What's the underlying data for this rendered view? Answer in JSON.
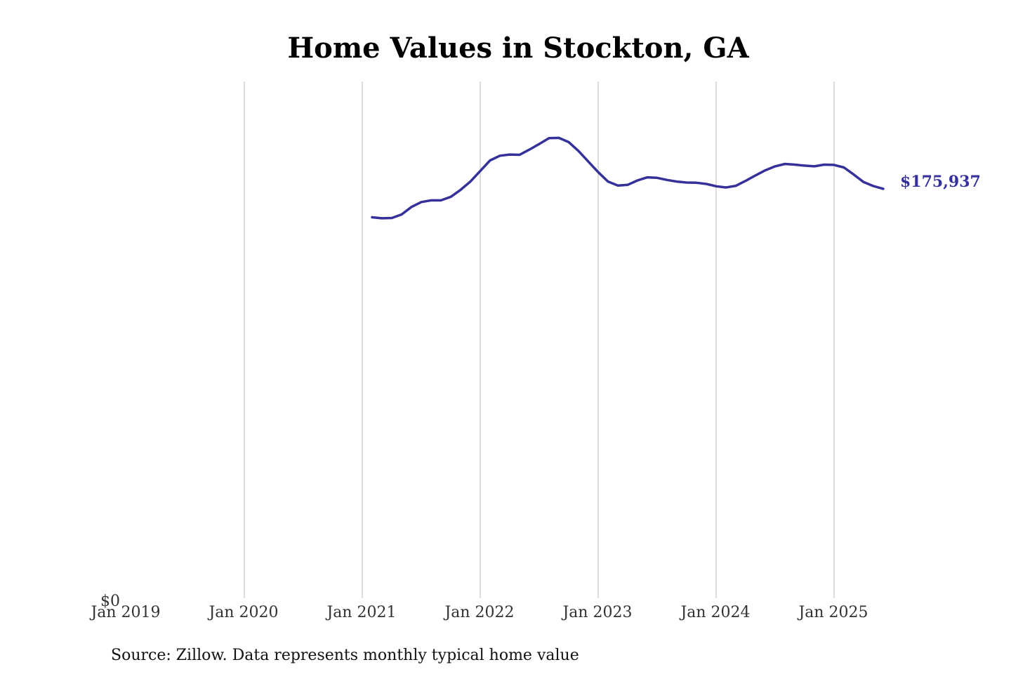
{
  "chart_data": {
    "type": "line",
    "title": "Home Values in Stockton, GA",
    "xlabel": "",
    "ylabel": "",
    "source": "Source: Zillow. Data represents monthly typical home value",
    "x_ticks": [
      {
        "label": "Jan 2019",
        "date": "2019-01"
      },
      {
        "label": "Jan 2020",
        "date": "2020-01"
      },
      {
        "label": "Jan 2021",
        "date": "2021-01"
      },
      {
        "label": "Jan 2022",
        "date": "2022-01"
      },
      {
        "label": "Jan 2023",
        "date": "2023-01"
      },
      {
        "label": "Jan 2024",
        "date": "2024-01"
      },
      {
        "label": "Jan 2025",
        "date": "2025-01"
      }
    ],
    "y_ticks": [
      {
        "label": "$0",
        "value": 0
      }
    ],
    "xlim": [
      "2019-01",
      "2025-06"
    ],
    "ylim": [
      0,
      221000
    ],
    "grid": "vertical",
    "line_color": "#35319a",
    "end_label": "$175,937",
    "series": [
      {
        "x": [
          "2021-02",
          "2021-03",
          "2021-04",
          "2021-05",
          "2021-06",
          "2021-07",
          "2021-08",
          "2021-09",
          "2021-10",
          "2021-11",
          "2021-12",
          "2022-01",
          "2022-02",
          "2022-03",
          "2022-04",
          "2022-05",
          "2022-06",
          "2022-07",
          "2022-08",
          "2022-09",
          "2022-10",
          "2022-11",
          "2022-12",
          "2023-01",
          "2023-02",
          "2023-03",
          "2023-04",
          "2023-05",
          "2023-06",
          "2023-07",
          "2023-08",
          "2023-09",
          "2023-10",
          "2023-11",
          "2023-12",
          "2024-01",
          "2024-02",
          "2024-03",
          "2024-04",
          "2024-05",
          "2024-06",
          "2024-07",
          "2024-08",
          "2024-09",
          "2024-10",
          "2024-11",
          "2024-12",
          "2025-01",
          "2025-02",
          "2025-03",
          "2025-04",
          "2025-05",
          "2025-06"
        ],
        "values": [
          163800,
          163400,
          163500,
          165000,
          168200,
          170300,
          171000,
          171000,
          172500,
          175500,
          179000,
          183500,
          188000,
          190000,
          190500,
          190400,
          192600,
          195000,
          197500,
          197600,
          195800,
          192000,
          187500,
          183000,
          179000,
          177300,
          177600,
          179500,
          180800,
          180600,
          179700,
          179000,
          178600,
          178500,
          178000,
          177000,
          176500,
          177200,
          179300,
          181600,
          183800,
          185500,
          186500,
          186200,
          185800,
          185500,
          186200,
          186100,
          185000,
          182000,
          178800,
          177100,
          175937
        ]
      }
    ]
  }
}
